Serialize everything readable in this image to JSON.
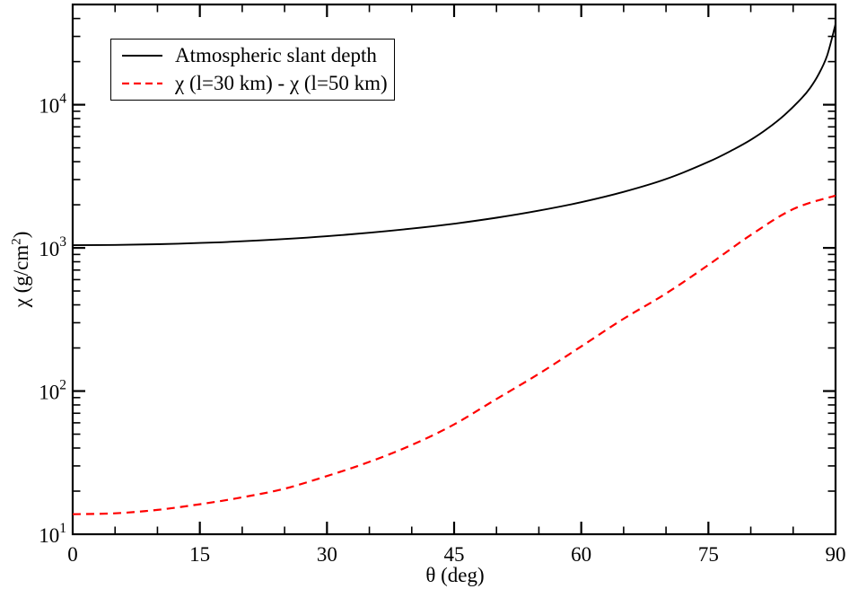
{
  "chart_data": {
    "type": "line",
    "title": "",
    "xlabel": "θ (deg)",
    "ylabel": {
      "prefix": "χ (g/cm",
      "sup": "2",
      "suffix": ")"
    },
    "x_axis": {
      "min": 0,
      "max": 90,
      "major_tick_step": 15,
      "minor_tick_step": 5,
      "tick_labels": [
        "0",
        "15",
        "30",
        "45",
        "60",
        "75",
        "90"
      ]
    },
    "y_axis": {
      "scale": "log",
      "min": 10,
      "max": 50000,
      "log10_min": 1,
      "log10_max": 4.7,
      "tick_label_base": "10",
      "decade_exponents": [
        "1",
        "2",
        "3",
        "4"
      ]
    },
    "grid": "off",
    "legend_position": "top-left",
    "series": [
      {
        "name": "Atmospheric slant depth",
        "color": "#000000",
        "style": "solid",
        "points": [
          [
            0,
            1045
          ],
          [
            5,
            1049
          ],
          [
            10,
            1061
          ],
          [
            15,
            1082
          ],
          [
            20,
            1112
          ],
          [
            25,
            1153
          ],
          [
            30,
            1206
          ],
          [
            35,
            1276
          ],
          [
            40,
            1363
          ],
          [
            45,
            1475
          ],
          [
            50,
            1624
          ],
          [
            55,
            1820
          ],
          [
            60,
            2085
          ],
          [
            65,
            2460
          ],
          [
            70,
            3025
          ],
          [
            75,
            3985
          ],
          [
            78,
            4880
          ],
          [
            80,
            5690
          ],
          [
            82,
            6830
          ],
          [
            84,
            8500
          ],
          [
            86,
            11100
          ],
          [
            87,
            13100
          ],
          [
            88,
            16300
          ],
          [
            89,
            22000
          ],
          [
            90,
            36500
          ]
        ]
      },
      {
        "name": "χ (l=30 km) - χ (l=50 km)",
        "color": "#ff0000",
        "style": "dashed",
        "points": [
          [
            0,
            13.8
          ],
          [
            5,
            14.0
          ],
          [
            10,
            14.8
          ],
          [
            15,
            16.2
          ],
          [
            20,
            18.1
          ],
          [
            25,
            20.8
          ],
          [
            30,
            25.5
          ],
          [
            35,
            32
          ],
          [
            40,
            42
          ],
          [
            45,
            58.5
          ],
          [
            50,
            88
          ],
          [
            55,
            132
          ],
          [
            60,
            205
          ],
          [
            65,
            320
          ],
          [
            70,
            480
          ],
          [
            75,
            760
          ],
          [
            80,
            1230
          ],
          [
            85,
            1865
          ],
          [
            90,
            2320
          ]
        ]
      }
    ]
  },
  "colors": {
    "background": "#ffffff",
    "frame": "#000000",
    "series_solid": "#000000",
    "series_dashed": "#ff0000"
  }
}
